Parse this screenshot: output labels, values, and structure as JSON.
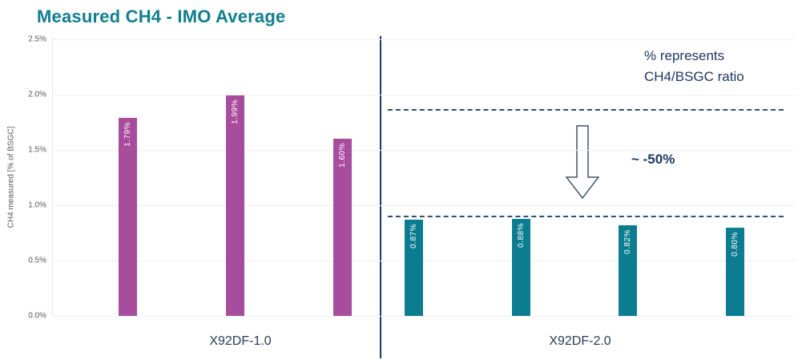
{
  "title": "Measured CH4 - IMO Average",
  "colors": {
    "purple_bars": "#A84D9D",
    "teal_bars": "#0C7D90",
    "title_teal": "#107F8E",
    "navy_text": "#1F3864",
    "dashed_line": "#34506E",
    "divider_line": "#1F3864",
    "gridline": "#ecf0f3"
  },
  "chart_data": {
    "type": "bar",
    "title": "Measured CH4 - IMO Average",
    "xlabel": "",
    "ylabel": "CH4 measured [% of BSGC]",
    "ylim": [
      0,
      2.5
    ],
    "grid": true,
    "yticks": [
      {
        "value": 0.0,
        "label": "0.0%"
      },
      {
        "value": 0.5,
        "label": "0.5%"
      },
      {
        "value": 1.0,
        "label": "1.0%"
      },
      {
        "value": 1.5,
        "label": "1.5%"
      },
      {
        "value": 2.0,
        "label": "2.0%"
      },
      {
        "value": 2.5,
        "label": "2.5%"
      }
    ],
    "groups": [
      {
        "name": "X92DF-1.0",
        "color": "#A84D9D",
        "bars": [
          {
            "value": 1.79,
            "label": "1.79%"
          },
          {
            "value": 1.99,
            "label": "1.99%"
          },
          {
            "value": 1.6,
            "label": "1.60%"
          }
        ]
      },
      {
        "name": "X92DF-2.0",
        "color": "#0C7D90",
        "bars": [
          {
            "value": 0.87,
            "label": "0.87%"
          },
          {
            "value": 0.88,
            "label": "0.88%"
          },
          {
            "value": 0.82,
            "label": "0.82%"
          },
          {
            "value": 0.8,
            "label": "0.80%"
          }
        ]
      }
    ],
    "reference_lines": [
      {
        "value": 1.86,
        "style": "dashed",
        "side": "right-of-divider"
      },
      {
        "value": 0.9,
        "style": "dashed",
        "side": "right-of-divider"
      }
    ],
    "annotations": [
      {
        "role": "note-line-1",
        "text": "% represents"
      },
      {
        "role": "note-line-2",
        "text": "CH4/BSGC ratio"
      },
      {
        "role": "reduction",
        "text": "~ -50%"
      },
      {
        "role": "arrow",
        "type": "arrow-down"
      }
    ]
  }
}
